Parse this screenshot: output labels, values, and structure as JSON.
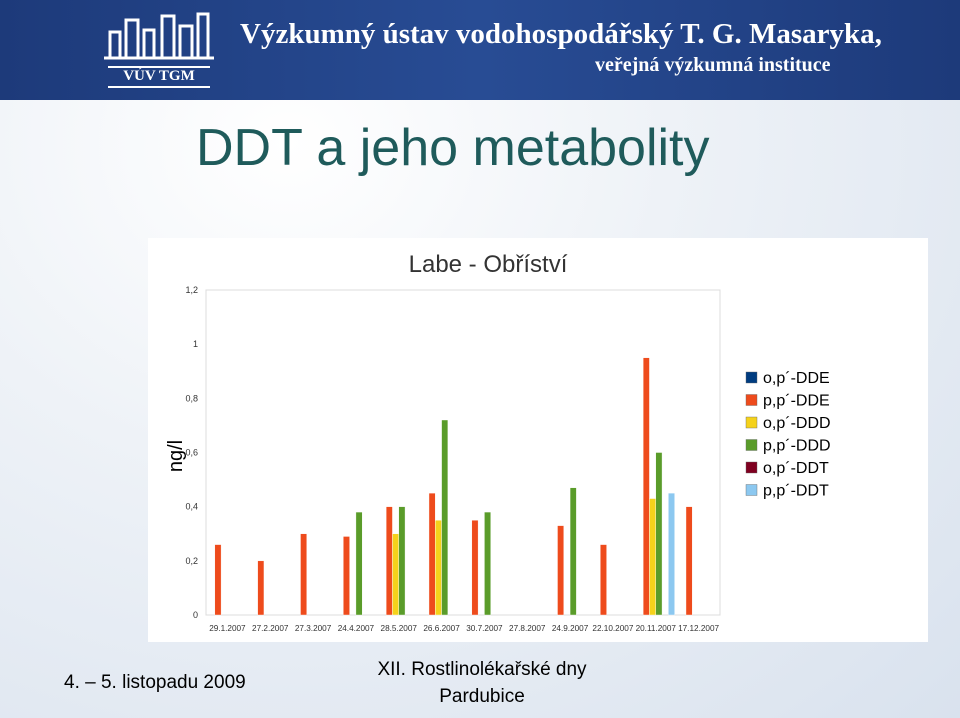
{
  "header": {
    "logo_text": "VÚV TGM",
    "org_name": "Výzkumný ústav vodohospodářský T. G. Masaryka,",
    "org_sub": "veřejná výzkumná instituce"
  },
  "slide": {
    "title": "DDT a jeho metabolity"
  },
  "footer": {
    "date": "4. – 5. listopadu 2009",
    "event_line1": "XII. Rostlinolékařské dny",
    "event_line2": "Pardubice"
  },
  "colors": {
    "o,p´-DDE": "#003c80",
    "p,p´-DDE": "#ee4b1c",
    "o,p´-DDD": "#f5d21b",
    "p,p´-DDD": "#5a9c2a",
    "o,p´-DDT": "#7f0020",
    "p,p´-DDT": "#8cc8f0"
  },
  "chart_data": {
    "type": "bar",
    "title": "Labe - Obříství",
    "ylabel": "ng/l",
    "xlabel": "",
    "ylim": [
      0,
      1.2
    ],
    "yticks": [
      "0",
      "0,2",
      "0,4",
      "0,6",
      "0,8",
      "1",
      "1,2"
    ],
    "legend_position": "right",
    "categories": [
      "29.1.2007",
      "27.2.2007",
      "27.3.2007",
      "24.4.2007",
      "28.5.2007",
      "26.6.2007",
      "30.7.2007",
      "27.8.2007",
      "24.9.2007",
      "22.10.2007",
      "20.11.2007",
      "17.12.2007"
    ],
    "series": [
      {
        "name": "o,p´-DDE",
        "values": [
          0,
          0,
          0,
          0,
          0,
          0,
          0,
          0,
          0,
          0,
          0,
          0
        ]
      },
      {
        "name": "p,p´-DDE",
        "values": [
          0.26,
          0.2,
          0.3,
          0.29,
          0.4,
          0.45,
          0.35,
          0,
          0.33,
          0.26,
          0.95,
          0.4
        ]
      },
      {
        "name": "o,p´-DDD",
        "values": [
          0,
          0,
          0,
          0,
          0.3,
          0.35,
          0,
          0,
          0,
          0,
          0.43,
          0
        ]
      },
      {
        "name": "p,p´-DDD",
        "values": [
          0,
          0,
          0,
          0.38,
          0.4,
          0.72,
          0.38,
          0,
          0.47,
          0,
          0.6,
          0
        ]
      },
      {
        "name": "o,p´-DDT",
        "values": [
          0,
          0,
          0,
          0,
          0,
          0,
          0,
          0,
          0,
          0,
          0,
          0
        ]
      },
      {
        "name": "p,p´-DDT",
        "values": [
          0,
          0,
          0,
          0,
          0,
          0,
          0,
          0,
          0,
          0,
          0.45,
          0
        ]
      }
    ]
  }
}
